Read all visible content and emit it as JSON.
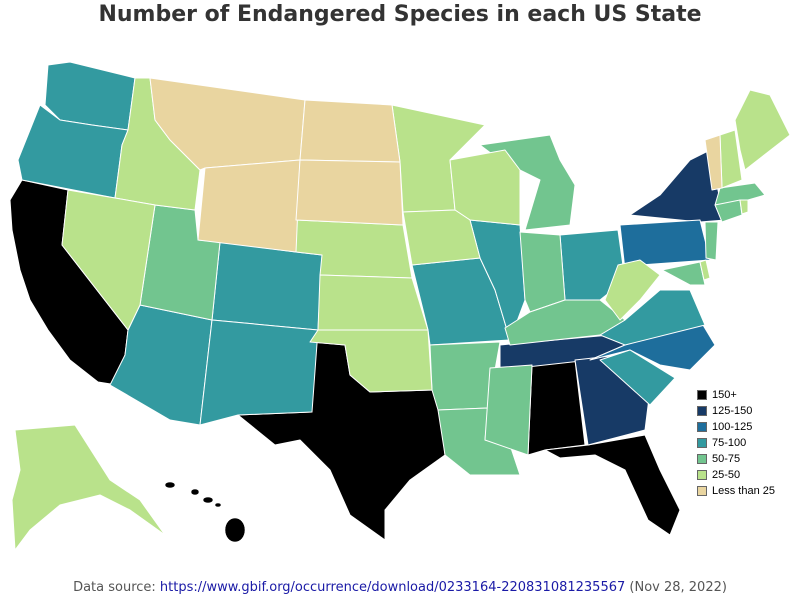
{
  "title": "Number of Endangered Species in each US State",
  "legend": [
    {
      "label": "150+",
      "color": "#000000"
    },
    {
      "label": "125-150",
      "color": "#173a66"
    },
    {
      "label": "100-125",
      "color": "#1e6e9c"
    },
    {
      "label": "75-100",
      "color": "#339aa0"
    },
    {
      "label": "50-75",
      "color": "#72c58f"
    },
    {
      "label": "25-50",
      "color": "#b9e28b"
    },
    {
      "label": "Less than 25",
      "color": "#e9d5a0"
    }
  ],
  "source": {
    "prefix": "Data source: ",
    "link": "https://www.gbif.org/occurrence/download/0233164-220831081235567",
    "suffix": " (Nov 28, 2022)"
  },
  "map_data": {
    "type": "choropleth",
    "states": [
      {
        "state": "California",
        "category": "150+"
      },
      {
        "state": "Texas",
        "category": "150+"
      },
      {
        "state": "Alabama",
        "category": "150+"
      },
      {
        "state": "Florida",
        "category": "150+"
      },
      {
        "state": "Hawaii",
        "category": "150+"
      },
      {
        "state": "New York",
        "category": "125-150"
      },
      {
        "state": "Tennessee",
        "category": "125-150"
      },
      {
        "state": "Georgia",
        "category": "125-150"
      },
      {
        "state": "Pennsylvania",
        "category": "100-125"
      },
      {
        "state": "North Carolina",
        "category": "100-125"
      },
      {
        "state": "Washington",
        "category": "75-100"
      },
      {
        "state": "Oregon",
        "category": "75-100"
      },
      {
        "state": "Colorado",
        "category": "75-100"
      },
      {
        "state": "Arizona",
        "category": "75-100"
      },
      {
        "state": "New Mexico",
        "category": "75-100"
      },
      {
        "state": "Missouri",
        "category": "75-100"
      },
      {
        "state": "Illinois",
        "category": "75-100"
      },
      {
        "state": "Ohio",
        "category": "75-100"
      },
      {
        "state": "Virginia",
        "category": "75-100"
      },
      {
        "state": "South Carolina",
        "category": "75-100"
      },
      {
        "state": "Utah",
        "category": "50-75"
      },
      {
        "state": "Arkansas",
        "category": "50-75"
      },
      {
        "state": "Louisiana",
        "category": "50-75"
      },
      {
        "state": "Mississippi",
        "category": "50-75"
      },
      {
        "state": "Michigan",
        "category": "50-75"
      },
      {
        "state": "Indiana",
        "category": "50-75"
      },
      {
        "state": "Kentucky",
        "category": "50-75"
      },
      {
        "state": "Massachusetts",
        "category": "50-75"
      },
      {
        "state": "Connecticut",
        "category": "50-75"
      },
      {
        "state": "New Jersey",
        "category": "50-75"
      },
      {
        "state": "Maryland",
        "category": "50-75"
      },
      {
        "state": "Idaho",
        "category": "25-50"
      },
      {
        "state": "Nevada",
        "category": "25-50"
      },
      {
        "state": "Minnesota",
        "category": "25-50"
      },
      {
        "state": "Wisconsin",
        "category": "25-50"
      },
      {
        "state": "Iowa",
        "category": "25-50"
      },
      {
        "state": "Nebraska",
        "category": "25-50"
      },
      {
        "state": "Kansas",
        "category": "25-50"
      },
      {
        "state": "Oklahoma",
        "category": "25-50"
      },
      {
        "state": "West Virginia",
        "category": "25-50"
      },
      {
        "state": "Maine",
        "category": "25-50"
      },
      {
        "state": "New Hampshire",
        "category": "25-50"
      },
      {
        "state": "Rhode Island",
        "category": "25-50"
      },
      {
        "state": "Delaware",
        "category": "25-50"
      },
      {
        "state": "Alaska",
        "category": "25-50"
      },
      {
        "state": "Montana",
        "category": "Less than 25"
      },
      {
        "state": "Wyoming",
        "category": "Less than 25"
      },
      {
        "state": "North Dakota",
        "category": "Less than 25"
      },
      {
        "state": "South Dakota",
        "category": "Less than 25"
      },
      {
        "state": "Vermont",
        "category": "Less than 25"
      }
    ]
  }
}
